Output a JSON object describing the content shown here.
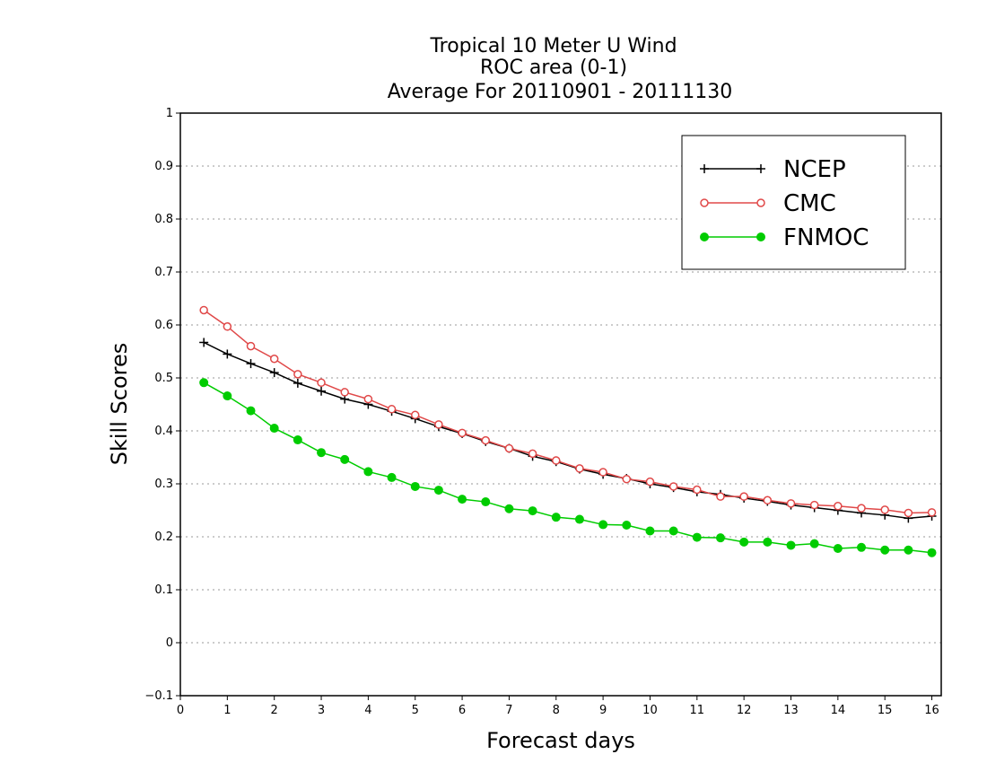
{
  "chart_data": {
    "type": "line",
    "title": "Tropical 10 Meter U Wind",
    "subtitle": "ROC area (0-1)",
    "subtitle2": "Average For 20110901 - 20111130",
    "xlabel": "Forecast days",
    "ylabel": "Skill Scores",
    "xlim": [
      0,
      16.2
    ],
    "ylim": [
      -0.1,
      1
    ],
    "x_ticks": [
      "0",
      "1",
      "2",
      "3",
      "4",
      "5",
      "6",
      "7",
      "8",
      "9",
      "10",
      "11",
      "12",
      "13",
      "14",
      "15",
      "16"
    ],
    "y_ticks": [
      "−0.1",
      "0",
      "0.1",
      "0.2",
      "0.3",
      "0.4",
      "0.5",
      "0.6",
      "0.7",
      "0.8",
      "0.9",
      "1"
    ],
    "y_tick_values": [
      -0.1,
      0,
      0.1,
      0.2,
      0.3,
      0.4,
      0.5,
      0.6,
      0.7,
      0.8,
      0.9,
      1
    ],
    "grid": "horizontal dotted",
    "legend_position": "top-right",
    "x": [
      0.5,
      1,
      1.5,
      2,
      2.5,
      3,
      3.5,
      4,
      4.5,
      5,
      5.5,
      6,
      6.5,
      7,
      7.5,
      8,
      8.5,
      9,
      9.5,
      10,
      10.5,
      11,
      11.5,
      12,
      12.5,
      13,
      13.5,
      14,
      14.5,
      15,
      15.5,
      16
    ],
    "series": [
      {
        "name": "NCEP",
        "color": "#000000",
        "marker": "plus",
        "values": [
          0.567,
          0.545,
          0.527,
          0.51,
          0.49,
          0.475,
          0.46,
          0.45,
          0.437,
          0.423,
          0.408,
          0.395,
          0.38,
          0.367,
          0.352,
          0.342,
          0.328,
          0.318,
          0.31,
          0.3,
          0.293,
          0.285,
          0.28,
          0.273,
          0.267,
          0.26,
          0.255,
          0.25,
          0.245,
          0.241,
          0.235,
          0.239
        ]
      },
      {
        "name": "CMC",
        "color": "#e04848",
        "marker": "open-circle",
        "values": [
          0.628,
          0.597,
          0.56,
          0.536,
          0.507,
          0.491,
          0.473,
          0.46,
          0.441,
          0.43,
          0.412,
          0.396,
          0.382,
          0.367,
          0.357,
          0.344,
          0.329,
          0.322,
          0.309,
          0.304,
          0.295,
          0.289,
          0.276,
          0.276,
          0.269,
          0.263,
          0.26,
          0.258,
          0.254,
          0.251,
          0.245,
          0.246
        ]
      },
      {
        "name": "FNMOC",
        "color": "#00cc00",
        "marker": "filled-circle",
        "values": [
          0.491,
          0.466,
          0.438,
          0.405,
          0.383,
          0.359,
          0.346,
          0.323,
          0.312,
          0.295,
          0.288,
          0.271,
          0.266,
          0.253,
          0.249,
          0.237,
          0.233,
          0.223,
          0.222,
          0.211,
          0.211,
          0.199,
          0.198,
          0.19,
          0.19,
          0.184,
          0.187,
          0.178,
          0.18,
          0.175,
          0.175,
          0.17
        ]
      }
    ]
  }
}
